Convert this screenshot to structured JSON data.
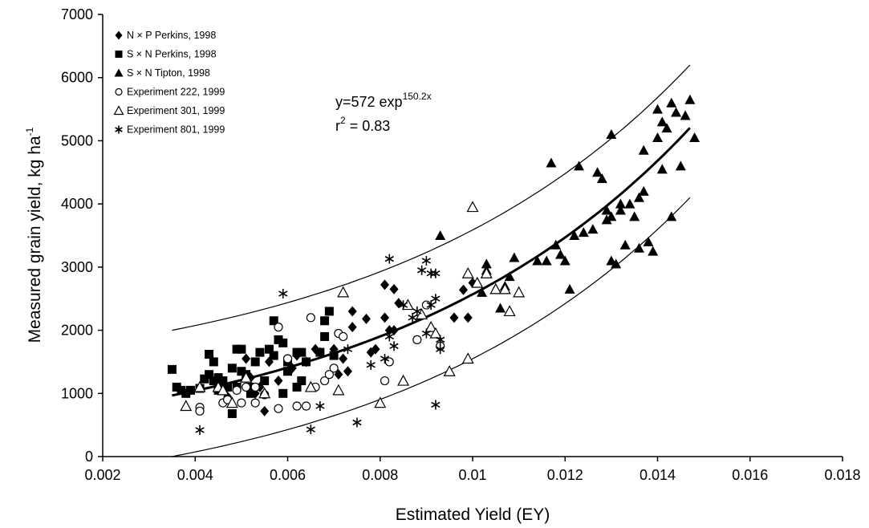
{
  "chart_data": {
    "type": "scatter",
    "xlabel": "Estimated Yield (EY)",
    "ylabel": "Measured grain yield, kg ha",
    "ylabel_sup": "-1",
    "xlim": [
      0.002,
      0.018
    ],
    "ylim": [
      0,
      7000
    ],
    "x_ticks": [
      "0.002",
      "0.004",
      "0.006",
      "0.008",
      "0.01",
      "0.012",
      "0.014",
      "0.016",
      "0.018"
    ],
    "y_ticks": [
      "0",
      "1000",
      "2000",
      "3000",
      "4000",
      "5000",
      "6000",
      "7000"
    ],
    "grid": false,
    "legend_position": "top-left",
    "equation": {
      "line1_prefix": "y=572 exp",
      "line1_sup": "150.2x",
      "line2_r": "r",
      "line2_sup": "2",
      "line2_rest": " = 0.83",
      "a": 572,
      "b": 150.2
    },
    "fit_x_range": [
      0.0035,
      0.0147
    ],
    "band_x_range": [
      0.0035,
      0.0147
    ],
    "upper_band_y": [
      2000,
      6200
    ],
    "lower_band_y": [
      0,
      4100
    ],
    "series": [
      {
        "name": "N × P Perkins, 1998",
        "marker": "diamond",
        "points": [
          [
            0.0047,
            950
          ],
          [
            0.0049,
            1100
          ],
          [
            0.0051,
            1550
          ],
          [
            0.0052,
            1250
          ],
          [
            0.0053,
            1000
          ],
          [
            0.0054,
            1100
          ],
          [
            0.0055,
            720
          ],
          [
            0.0056,
            1500
          ],
          [
            0.0058,
            1200
          ],
          [
            0.0061,
            1400
          ],
          [
            0.0062,
            1600
          ],
          [
            0.0064,
            1500
          ],
          [
            0.0066,
            1700
          ],
          [
            0.0067,
            1650
          ],
          [
            0.007,
            1700
          ],
          [
            0.0071,
            1300
          ],
          [
            0.0072,
            1550
          ],
          [
            0.0073,
            1350
          ],
          [
            0.0074,
            2050
          ],
          [
            0.0074,
            2300
          ],
          [
            0.0077,
            2180
          ],
          [
            0.0078,
            1650
          ],
          [
            0.0079,
            1700
          ],
          [
            0.0081,
            2720
          ],
          [
            0.0081,
            2200
          ],
          [
            0.0082,
            2000
          ],
          [
            0.0083,
            2000
          ],
          [
            0.0083,
            2650
          ],
          [
            0.0084,
            2430
          ],
          [
            0.0096,
            2200
          ],
          [
            0.0098,
            2640
          ],
          [
            0.0099,
            2200
          ],
          [
            0.01,
            2750
          ]
        ]
      },
      {
        "name": "S × N Perkins, 1998",
        "marker": "square",
        "points": [
          [
            0.0035,
            1380
          ],
          [
            0.0036,
            1100
          ],
          [
            0.0037,
            1050
          ],
          [
            0.0038,
            1000
          ],
          [
            0.0039,
            1050
          ],
          [
            0.0041,
            1080
          ],
          [
            0.0042,
            1230
          ],
          [
            0.0043,
            1620
          ],
          [
            0.0043,
            1300
          ],
          [
            0.0044,
            1200
          ],
          [
            0.0044,
            1500
          ],
          [
            0.0045,
            1250
          ],
          [
            0.0045,
            1050
          ],
          [
            0.0046,
            1100
          ],
          [
            0.0046,
            1200
          ],
          [
            0.0047,
            1100
          ],
          [
            0.0048,
            1400
          ],
          [
            0.0048,
            680
          ],
          [
            0.0049,
            1700
          ],
          [
            0.0049,
            1100
          ],
          [
            0.005,
            1700
          ],
          [
            0.005,
            1350
          ],
          [
            0.0051,
            1300
          ],
          [
            0.0052,
            1100
          ],
          [
            0.0052,
            1000
          ],
          [
            0.0053,
            1500
          ],
          [
            0.0054,
            1650
          ],
          [
            0.0055,
            1200
          ],
          [
            0.0056,
            1700
          ],
          [
            0.0057,
            1600
          ],
          [
            0.0057,
            2150
          ],
          [
            0.0058,
            1850
          ],
          [
            0.0059,
            1800
          ],
          [
            0.0059,
            1000
          ],
          [
            0.006,
            1500
          ],
          [
            0.006,
            1350
          ],
          [
            0.0062,
            1100
          ],
          [
            0.0062,
            1650
          ],
          [
            0.0063,
            1650
          ],
          [
            0.0063,
            1200
          ],
          [
            0.0064,
            1500
          ],
          [
            0.0067,
            1650
          ],
          [
            0.0068,
            1900
          ],
          [
            0.0068,
            2150
          ],
          [
            0.0069,
            2300
          ],
          [
            0.007,
            1600
          ]
        ]
      },
      {
        "name": "S × N Tipton, 1998",
        "marker": "triangle",
        "points": [
          [
            0.0093,
            3500
          ],
          [
            0.0102,
            2600
          ],
          [
            0.0103,
            3050
          ],
          [
            0.0103,
            2950
          ],
          [
            0.0106,
            2350
          ],
          [
            0.0107,
            2700
          ],
          [
            0.0108,
            2850
          ],
          [
            0.0109,
            3150
          ],
          [
            0.0114,
            3100
          ],
          [
            0.0116,
            3100
          ],
          [
            0.0117,
            4650
          ],
          [
            0.0118,
            3350
          ],
          [
            0.0119,
            3200
          ],
          [
            0.012,
            3100
          ],
          [
            0.0121,
            2650
          ],
          [
            0.0122,
            3500
          ],
          [
            0.0123,
            4600
          ],
          [
            0.0124,
            3550
          ],
          [
            0.0126,
            3600
          ],
          [
            0.0127,
            4500
          ],
          [
            0.0128,
            4400
          ],
          [
            0.0129,
            3750
          ],
          [
            0.0129,
            3900
          ],
          [
            0.013,
            3800
          ],
          [
            0.013,
            3100
          ],
          [
            0.013,
            5100
          ],
          [
            0.0131,
            3050
          ],
          [
            0.0132,
            3900
          ],
          [
            0.0132,
            4000
          ],
          [
            0.0133,
            3350
          ],
          [
            0.0134,
            4000
          ],
          [
            0.0135,
            3800
          ],
          [
            0.0136,
            4100
          ],
          [
            0.0136,
            3300
          ],
          [
            0.0137,
            4200
          ],
          [
            0.0137,
            4850
          ],
          [
            0.0138,
            3400
          ],
          [
            0.0139,
            3250
          ],
          [
            0.014,
            5500
          ],
          [
            0.014,
            5050
          ],
          [
            0.0141,
            4550
          ],
          [
            0.0141,
            5300
          ],
          [
            0.0142,
            5200
          ],
          [
            0.0143,
            3800
          ],
          [
            0.0143,
            5600
          ],
          [
            0.0144,
            5450
          ],
          [
            0.0145,
            4600
          ],
          [
            0.0146,
            5400
          ],
          [
            0.0147,
            5650
          ],
          [
            0.0148,
            5050
          ]
        ]
      },
      {
        "name": "Experiment 222, 1999",
        "marker": "circle-open",
        "points": [
          [
            0.0041,
            780
          ],
          [
            0.0041,
            720
          ],
          [
            0.0046,
            850
          ],
          [
            0.0047,
            900
          ],
          [
            0.0049,
            1050
          ],
          [
            0.005,
            850
          ],
          [
            0.0051,
            1100
          ],
          [
            0.0053,
            850
          ],
          [
            0.0053,
            1100
          ],
          [
            0.0055,
            980
          ],
          [
            0.0058,
            2050
          ],
          [
            0.0058,
            760
          ],
          [
            0.006,
            1550
          ],
          [
            0.0062,
            800
          ],
          [
            0.0064,
            800
          ],
          [
            0.0065,
            2200
          ],
          [
            0.0066,
            1100
          ],
          [
            0.0068,
            1200
          ],
          [
            0.0069,
            1300
          ],
          [
            0.007,
            1400
          ],
          [
            0.0071,
            1950
          ],
          [
            0.0072,
            1900
          ],
          [
            0.0081,
            1200
          ],
          [
            0.0082,
            1500
          ],
          [
            0.0088,
            1850
          ],
          [
            0.009,
            2400
          ],
          [
            0.0093,
            1750
          ]
        ]
      },
      {
        "name": "Experiment 301, 1999",
        "marker": "triangle-open",
        "points": [
          [
            0.0038,
            800
          ],
          [
            0.0041,
            1100
          ],
          [
            0.0045,
            1100
          ],
          [
            0.0046,
            1050
          ],
          [
            0.0048,
            850
          ],
          [
            0.0051,
            1250
          ],
          [
            0.0055,
            1000
          ],
          [
            0.0065,
            1100
          ],
          [
            0.0071,
            1050
          ],
          [
            0.0072,
            2600
          ],
          [
            0.008,
            850
          ],
          [
            0.0085,
            1200
          ],
          [
            0.0086,
            2400
          ],
          [
            0.0089,
            2250
          ],
          [
            0.0091,
            2050
          ],
          [
            0.0092,
            1950
          ],
          [
            0.0095,
            1350
          ],
          [
            0.0099,
            1550
          ],
          [
            0.0099,
            2900
          ],
          [
            0.01,
            3950
          ],
          [
            0.0101,
            2750
          ],
          [
            0.0103,
            2900
          ],
          [
            0.0105,
            2650
          ],
          [
            0.0107,
            2650
          ],
          [
            0.0108,
            2300
          ],
          [
            0.011,
            2600
          ]
        ]
      },
      {
        "name": "Experiment 801, 1999",
        "marker": "star",
        "points": [
          [
            0.0041,
            420
          ],
          [
            0.0059,
            2580
          ],
          [
            0.0065,
            430
          ],
          [
            0.0067,
            800
          ],
          [
            0.0073,
            1700
          ],
          [
            0.0075,
            540
          ],
          [
            0.0078,
            1450
          ],
          [
            0.0081,
            1550
          ],
          [
            0.0082,
            1900
          ],
          [
            0.0082,
            3130
          ],
          [
            0.0083,
            1750
          ],
          [
            0.0085,
            2400
          ],
          [
            0.0087,
            2200
          ],
          [
            0.0088,
            2300
          ],
          [
            0.0089,
            2950
          ],
          [
            0.009,
            3100
          ],
          [
            0.009,
            1950
          ],
          [
            0.0091,
            2900
          ],
          [
            0.0091,
            2400
          ],
          [
            0.0092,
            2900
          ],
          [
            0.0092,
            2500
          ],
          [
            0.0092,
            820
          ],
          [
            0.0093,
            1700
          ],
          [
            0.0093,
            1850
          ]
        ]
      }
    ]
  }
}
